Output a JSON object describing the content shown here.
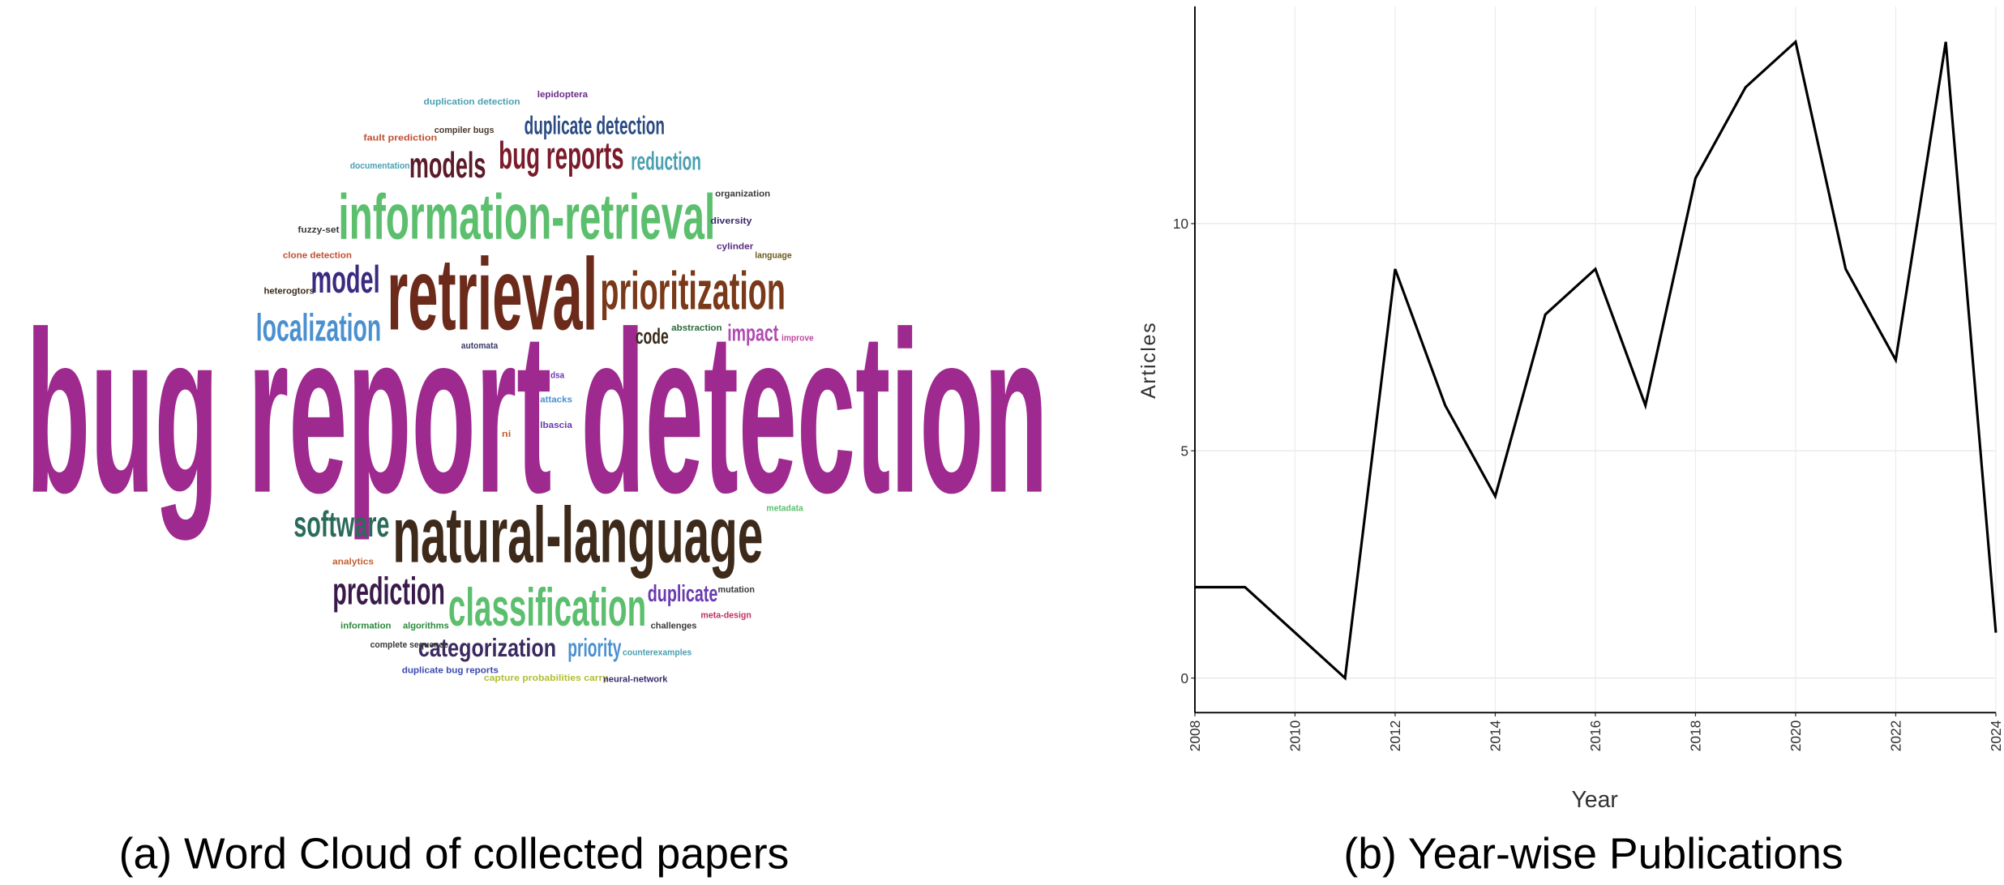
{
  "chart_data": [
    {
      "type": "wordcloud",
      "caption": "(a) Word Cloud of collected papers",
      "words": [
        {
          "text": "bug report detection",
          "size": 180,
          "color": "#9e2a8f"
        },
        {
          "text": "retrieval",
          "size": 80,
          "color": "#6b2a1a"
        },
        {
          "text": "information-retrieval",
          "size": 50,
          "color": "#5cbf6e"
        },
        {
          "text": "prioritization",
          "size": 42,
          "color": "#7a3a1a"
        },
        {
          "text": "natural-language",
          "size": 62,
          "color": "#3e2a1a"
        },
        {
          "text": "classification",
          "size": 42,
          "color": "#5cbf6e"
        },
        {
          "text": "prediction",
          "size": 30,
          "color": "#3a1a4a"
        },
        {
          "text": "software",
          "size": 28,
          "color": "#2a6b5a"
        },
        {
          "text": "localization",
          "size": 30,
          "color": "#4a90d0"
        },
        {
          "text": "model",
          "size": 30,
          "color": "#3a2a80"
        },
        {
          "text": "models",
          "size": 28,
          "color": "#5a1a2a"
        },
        {
          "text": "bug reports",
          "size": 30,
          "color": "#7a1a2a"
        },
        {
          "text": "duplicate detection",
          "size": 20,
          "color": "#2a4a80"
        },
        {
          "text": "reduction",
          "size": 20,
          "color": "#4aa0b0"
        },
        {
          "text": "code",
          "size": 17,
          "color": "#3a2a1a"
        },
        {
          "text": "impact",
          "size": 18,
          "color": "#b04ab0"
        },
        {
          "text": "duplicate",
          "size": 18,
          "color": "#6a3ab0"
        },
        {
          "text": "categorization",
          "size": 20,
          "color": "#3a2a60"
        },
        {
          "text": "priority",
          "size": 20,
          "color": "#4a90d0"
        },
        {
          "text": "duplication detection",
          "size": 7,
          "color": "#4aa0b0"
        },
        {
          "text": "lepidoptera",
          "size": 7,
          "color": "#6a2a8a"
        },
        {
          "text": "fault prediction",
          "size": 7,
          "color": "#c05030"
        },
        {
          "text": "compiler bugs",
          "size": 7,
          "color": "#4a3a2a"
        },
        {
          "text": "documentation",
          "size": 7,
          "color": "#4aa0b0"
        },
        {
          "text": "organization",
          "size": 7,
          "color": "#3a3a3a"
        },
        {
          "text": "diversity",
          "size": 7,
          "color": "#3a2a6a"
        },
        {
          "text": "fuzzy-set",
          "size": 7,
          "color": "#3a3a3a"
        },
        {
          "text": "cylinder",
          "size": 7,
          "color": "#5a2a80"
        },
        {
          "text": "language",
          "size": 7,
          "color": "#6a5a1a"
        },
        {
          "text": "clone detection",
          "size": 7,
          "color": "#c05030"
        },
        {
          "text": "heterogtors",
          "size": 7,
          "color": "#3a2a1a"
        },
        {
          "text": "abstraction",
          "size": 7,
          "color": "#2a6a3a"
        },
        {
          "text": "improve",
          "size": 7,
          "color": "#c04aa0"
        },
        {
          "text": "automata",
          "size": 7,
          "color": "#3a3a6a"
        },
        {
          "text": "dsa",
          "size": 7,
          "color": "#6a3ab0"
        },
        {
          "text": "attacks",
          "size": 7,
          "color": "#4a90d0"
        },
        {
          "text": "lbascia",
          "size": 7,
          "color": "#6a3ab0"
        },
        {
          "text": "ni",
          "size": 7,
          "color": "#c06030"
        },
        {
          "text": "metadata",
          "size": 7,
          "color": "#5cbf6e"
        },
        {
          "text": "analytics",
          "size": 7,
          "color": "#c06030"
        },
        {
          "text": "mutation",
          "size": 7,
          "color": "#3a3a3a"
        },
        {
          "text": "meta-design",
          "size": 7,
          "color": "#c03060"
        },
        {
          "text": "information",
          "size": 7,
          "color": "#2a8a3a"
        },
        {
          "text": "algorithms",
          "size": 7,
          "color": "#2a8a3a"
        },
        {
          "text": "challenges",
          "size": 7,
          "color": "#3a3a3a"
        },
        {
          "text": "complete sequence",
          "size": 7,
          "color": "#3a3a3a"
        },
        {
          "text": "counterexamples",
          "size": 7,
          "color": "#4aa0b0"
        },
        {
          "text": "duplicate bug reports",
          "size": 7,
          "color": "#3a4ab0"
        },
        {
          "text": "capture probabilities carry",
          "size": 7,
          "color": "#b0c030"
        },
        {
          "text": "neural-network",
          "size": 7,
          "color": "#3a2a6a"
        }
      ]
    },
    {
      "type": "line",
      "caption": "(b) Year-wise Publications",
      "xlabel": "Year",
      "ylabel": "Articles",
      "x": [
        2008,
        2009,
        2010,
        2011,
        2012,
        2013,
        2014,
        2015,
        2016,
        2017,
        2018,
        2019,
        2020,
        2021,
        2022,
        2023,
        2024
      ],
      "values": [
        2,
        2,
        1,
        0,
        9,
        6,
        4,
        8,
        9,
        6,
        11,
        13,
        14,
        9,
        7,
        14,
        1
      ],
      "color": "#000000",
      "xlim": [
        2008,
        2024
      ],
      "ylim": [
        -0.76,
        14.78
      ],
      "xticks": [
        2008,
        2010,
        2012,
        2014,
        2016,
        2018,
        2020,
        2022,
        2024
      ],
      "yticks": [
        0,
        5,
        10
      ],
      "grid": true
    }
  ]
}
